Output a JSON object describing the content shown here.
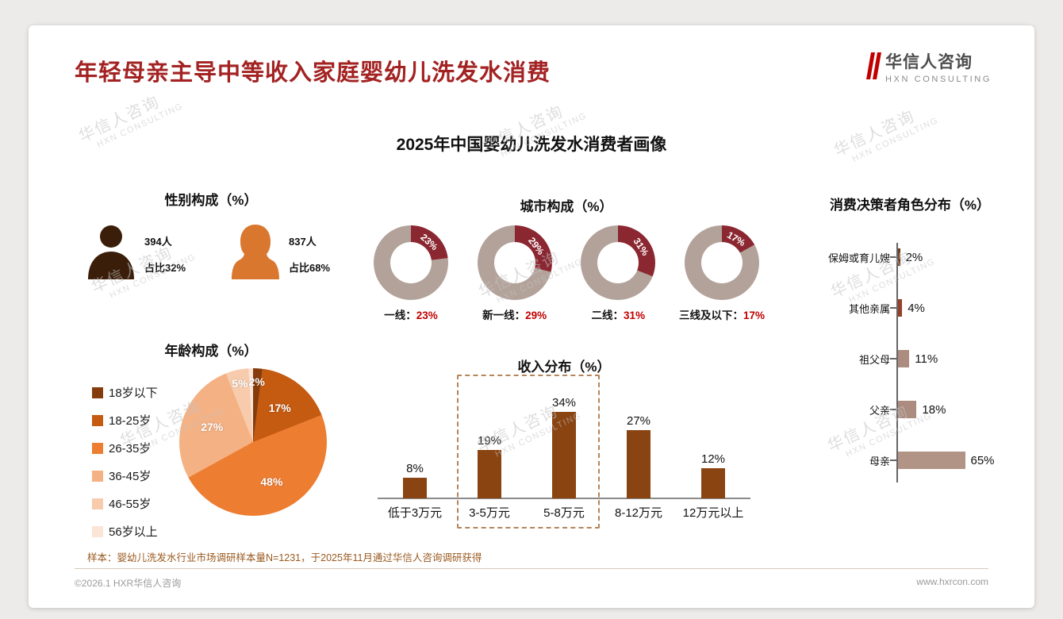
{
  "page": {
    "title": "年轻母亲主导中等收入家庭婴幼儿洗发水消费",
    "subtitle": "2025年中国婴幼儿洗发水消费者画像",
    "sample_note": "样本：婴幼儿洗发水行业市场调研样本量N=1231，于2025年11月通过华信人咨询调研获得",
    "logo": {
      "cn": "华信人咨询",
      "en": "HXN CONSULTING"
    },
    "watermark": {
      "cn": "华信人咨询",
      "en": "HXN CONSULTING"
    },
    "footer": {
      "left": "©2026.1 HXR华信人咨询",
      "right": "www.hxrcon.com"
    }
  },
  "colors": {
    "title_red": "#A32222",
    "value_red": "#C00000",
    "bar_brown": "#8A4412",
    "donut_highlight": "#8B2731",
    "donut_base": "#B3A29A"
  },
  "chart_data": [
    {
      "type": "pictogram",
      "title": "性别构成（%）",
      "items": [
        {
          "gender": "male",
          "count": "394人",
          "share": "占比32%",
          "color": "#3B1E09"
        },
        {
          "gender": "female",
          "count": "837人",
          "share": "占比68%",
          "color": "#D9772E"
        }
      ]
    },
    {
      "type": "donut",
      "title": "城市构成（%）",
      "highlight_color": "#8B2731",
      "base_color": "#B3A29A",
      "items": [
        {
          "label": "一线",
          "value": 23
        },
        {
          "label": "新一线",
          "value": 29
        },
        {
          "label": "二线",
          "value": 31
        },
        {
          "label": "三线及以下",
          "value": 17
        }
      ]
    },
    {
      "type": "pie",
      "title": "年龄构成（%）",
      "segments": [
        {
          "label": "18岁以下",
          "value": 2,
          "color": "#843C0C"
        },
        {
          "label": "18-25岁",
          "value": 17,
          "color": "#C55A11"
        },
        {
          "label": "26-35岁",
          "value": 48,
          "color": "#ED7D31"
        },
        {
          "label": "36-45岁",
          "value": 27,
          "color": "#F4B183"
        },
        {
          "label": "46-55岁",
          "value": 5,
          "color": "#F8CBAD"
        },
        {
          "label": "56岁以上",
          "value": 1,
          "color": "#FBE5D6"
        }
      ]
    },
    {
      "type": "bar",
      "title": "收入分布（%）",
      "categories": [
        "低于3万元",
        "3-5万元",
        "5-8万元",
        "8-12万元",
        "12万元以上"
      ],
      "values": [
        8,
        19,
        34,
        27,
        12
      ],
      "bar_color": "#8A4412",
      "highlight_range": [
        "3-5万元",
        "5-8万元"
      ],
      "ylim": [
        0,
        40
      ]
    },
    {
      "type": "hbar",
      "title": "消费决策者角色分布（%）",
      "categories": [
        "保姆或育儿嫂",
        "其他亲属",
        "祖父母",
        "父亲",
        "母亲"
      ],
      "values": [
        2,
        4,
        11,
        18,
        65
      ],
      "bar_colors": [
        "#6B3B20",
        "#95402B",
        "#AC8C7F",
        "#AC8C7F",
        "#B29487"
      ],
      "xlim": [
        0,
        70
      ]
    }
  ]
}
